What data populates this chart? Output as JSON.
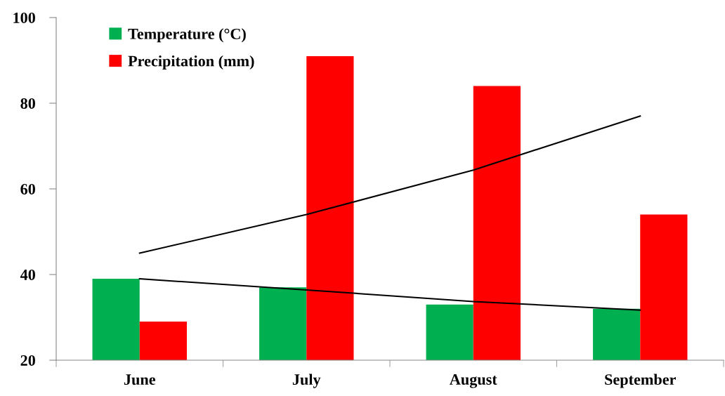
{
  "chart_data": {
    "type": "bar",
    "categories": [
      "June",
      "July",
      "August",
      "September"
    ],
    "series": [
      {
        "name": "Temperature (°C)",
        "color": "#00b050",
        "values": [
          39,
          37,
          33,
          32
        ]
      },
      {
        "name": "Precipitation (mm)",
        "color": "#ff0000",
        "values": [
          29,
          91,
          84,
          54
        ]
      },
      {
        "type": "line",
        "color": "#000000",
        "values": [
          45,
          54,
          64.4,
          77
        ]
      },
      {
        "type": "line",
        "color": "#000000",
        "values": [
          39,
          36.4,
          33.7,
          31.7
        ]
      }
    ],
    "ylim": [
      20,
      100
    ],
    "yticks": [
      20,
      40,
      60,
      80,
      100
    ],
    "grid": false,
    "legend": "top left",
    "marker": "none",
    "line_style": "solid"
  }
}
